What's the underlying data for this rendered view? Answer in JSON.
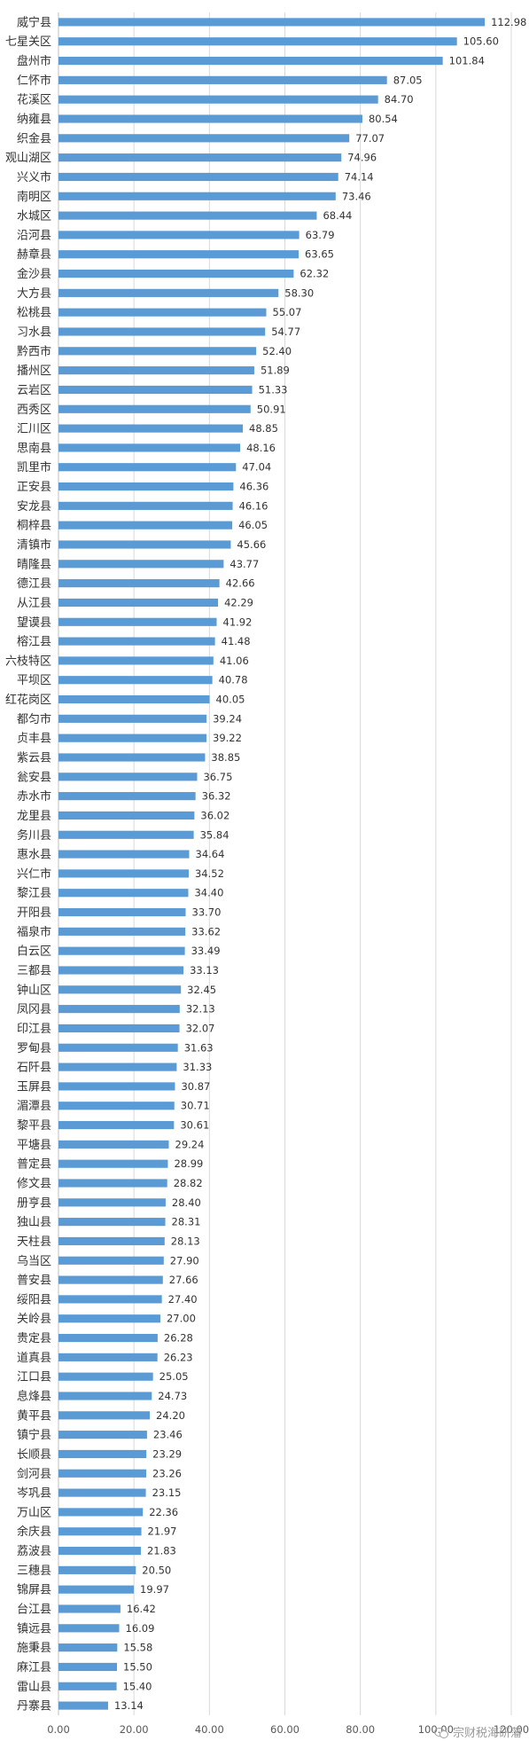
{
  "chart_data": {
    "type": "bar",
    "orientation": "horizontal",
    "title": "",
    "xlabel": "",
    "ylabel": "",
    "xlim": [
      0,
      120
    ],
    "x_ticks": [
      "0.00",
      "20.00",
      "40.00",
      "60.00",
      "80.00",
      "100.00",
      "120.00"
    ],
    "grid": true,
    "legend": "none",
    "bar_color": "#5B9BD5",
    "categories": [
      "威宁县",
      "七星关区",
      "盘州市",
      "仁怀市",
      "花溪区",
      "纳雍县",
      "织金县",
      "观山湖区",
      "兴义市",
      "南明区",
      "水城区",
      "沿河县",
      "赫章县",
      "金沙县",
      "大方县",
      "松桃县",
      "习水县",
      "黔西市",
      "播州区",
      "云岩区",
      "西秀区",
      "汇川区",
      "思南县",
      "凯里市",
      "正安县",
      "安龙县",
      "桐梓县",
      "清镇市",
      "晴隆县",
      "德江县",
      "从江县",
      "望谟县",
      "榕江县",
      "六枝特区",
      "平坝区",
      "红花岗区",
      "都匀市",
      "贞丰县",
      "紫云县",
      "瓮安县",
      "赤水市",
      "龙里县",
      "务川县",
      "惠水县",
      "兴仁市",
      "黎江县",
      "开阳县",
      "福泉市",
      "白云区",
      "三都县",
      "钟山区",
      "凤冈县",
      "印江县",
      "罗甸县",
      "石阡县",
      "玉屏县",
      "湄潭县",
      "黎平县",
      "平塘县",
      "普定县",
      "修文县",
      "册亨县",
      "独山县",
      "天柱县",
      "乌当区",
      "普安县",
      "绥阳县",
      "关岭县",
      "贵定县",
      "道真县",
      "江口县",
      "息烽县",
      "黄平县",
      "镇宁县",
      "长顺县",
      "剑河县",
      "岑巩县",
      "万山区",
      "余庆县",
      "荔波县",
      "三穗县",
      "锦屏县",
      "台江县",
      "镇远县",
      "施秉县",
      "麻江县",
      "雷山县",
      "丹寨县"
    ],
    "values": [
      112.98,
      105.6,
      101.84,
      87.05,
      84.7,
      80.54,
      77.07,
      74.96,
      74.14,
      73.46,
      68.44,
      63.79,
      63.65,
      62.32,
      58.3,
      55.07,
      54.77,
      52.4,
      51.89,
      51.33,
      50.91,
      48.85,
      48.16,
      47.04,
      46.36,
      46.16,
      46.05,
      45.66,
      43.77,
      42.66,
      42.29,
      41.92,
      41.48,
      41.06,
      40.78,
      40.05,
      39.24,
      39.22,
      38.85,
      36.75,
      36.32,
      36.02,
      35.84,
      34.64,
      34.52,
      34.4,
      33.7,
      33.62,
      33.49,
      33.13,
      32.45,
      32.13,
      32.07,
      31.63,
      31.33,
      30.87,
      30.71,
      30.61,
      29.24,
      28.99,
      28.82,
      28.4,
      28.31,
      28.13,
      27.9,
      27.66,
      27.4,
      27.0,
      26.28,
      26.23,
      25.05,
      24.73,
      24.2,
      23.46,
      23.29,
      23.26,
      23.15,
      22.36,
      21.97,
      21.83,
      20.5,
      19.97,
      16.42,
      16.09,
      15.58,
      15.5,
      15.4,
      13.14
    ],
    "value_labels": [
      "112.98",
      "105.60",
      "101.84",
      "87.05",
      "84.70",
      "80.54",
      "77.07",
      "74.96",
      "74.14",
      "73.46",
      "68.44",
      "63.79",
      "63.65",
      "62.32",
      "58.30",
      "55.07",
      "54.77",
      "52.40",
      "51.89",
      "51.33",
      "50.91",
      "48.85",
      "48.16",
      "47.04",
      "46.36",
      "46.16",
      "46.05",
      "45.66",
      "43.77",
      "42.66",
      "42.29",
      "41.92",
      "41.48",
      "41.06",
      "40.78",
      "40.05",
      "39.24",
      "39.22",
      "38.85",
      "36.75",
      "36.32",
      "36.02",
      "35.84",
      "34.64",
      "34.52",
      "34.40",
      "33.70",
      "33.62",
      "33.49",
      "33.13",
      "32.45",
      "32.13",
      "32.07",
      "31.63",
      "31.33",
      "30.87",
      "30.71",
      "30.61",
      "29.24",
      "28.99",
      "28.82",
      "28.40",
      "28.31",
      "28.13",
      "27.90",
      "27.66",
      "27.40",
      "27.00",
      "26.28",
      "26.23",
      "25.05",
      "24.73",
      "24.20",
      "23.46",
      "23.29",
      "23.26",
      "23.15",
      "22.36",
      "21.97",
      "21.83",
      "20.50",
      "19.97",
      "16.42",
      "16.09",
      "15.58",
      "15.50",
      "15.40",
      "13.14"
    ]
  },
  "watermark": {
    "text": "宗财税海研藩",
    "icon": "wechat-icon"
  }
}
